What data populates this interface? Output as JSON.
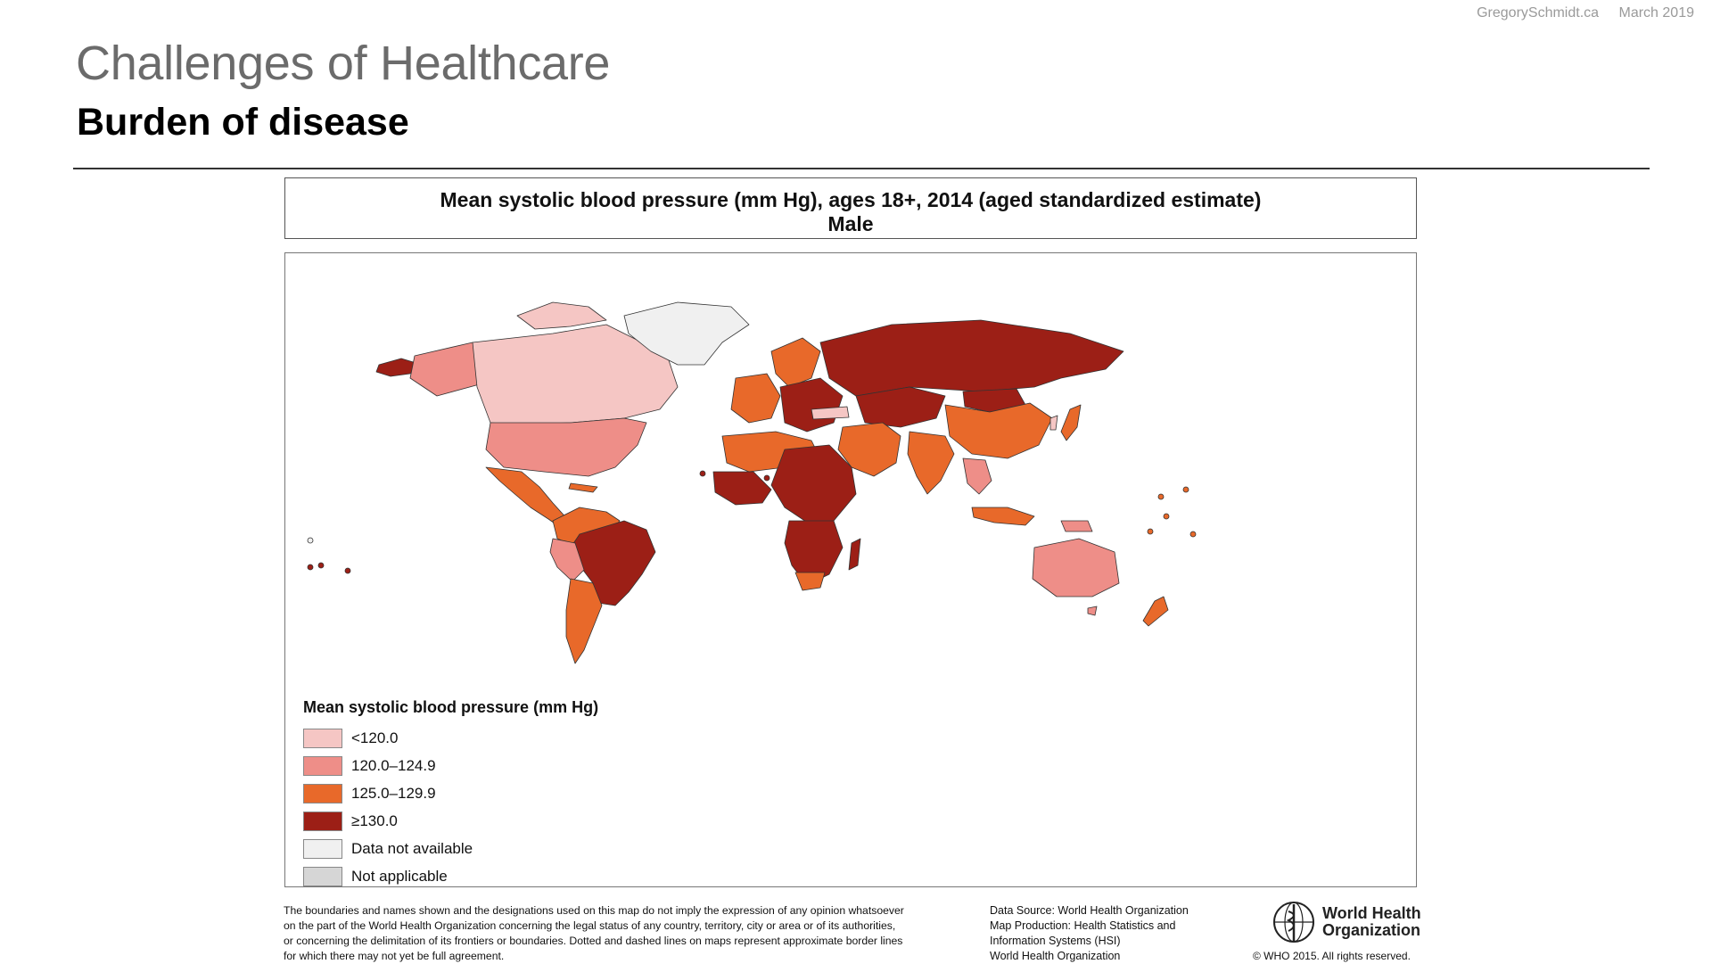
{
  "header": {
    "site": "GregorySchmidt.ca",
    "date": "March 2019",
    "title": "Challenges of Healthcare",
    "subtitle": "Burden of disease"
  },
  "map": {
    "title_line1": "Mean systolic blood pressure (mm Hg), ages 18+, 2014 (aged standardized estimate)",
    "title_line2": "Male",
    "colors": {
      "lt120": "#f5c6c4",
      "c120_124": "#ee8e88",
      "c125_129": "#e8692a",
      "ge130": "#9c1f16",
      "na": "#f0f0f0",
      "not_applicable": "#d6d6d6"
    },
    "legend": {
      "title": "Mean systolic blood pressure (mm Hg)",
      "items": [
        {
          "label": "<120.0",
          "color": "#f5c6c4"
        },
        {
          "label": "120.0–124.9",
          "color": "#ee8e88"
        },
        {
          "label": "125.0–129.9",
          "color": "#e8692a"
        },
        {
          "label": "≥130.0",
          "color": "#9c1f16"
        },
        {
          "label": "Data not available",
          "color": "#f0f0f0"
        },
        {
          "label": "Not applicable",
          "color": "#d6d6d6"
        }
      ]
    }
  },
  "footer": {
    "disclaimer_lines": [
      "The boundaries and names shown and the designations used on this map do not imply the expression of any opinion whatsoever",
      "on the part of the World Health Organization concerning the legal status of any country, territory, city or area or of its authorities,",
      "or concerning the delimitation of its frontiers or boundaries. Dotted and dashed lines on maps represent approximate border lines",
      "for which there may not yet be full agreement."
    ],
    "source_lines": [
      "Data Source: World Health Organization",
      "Map Production: Health Statistics and",
      "Information Systems (HSI)",
      "World Health Organization"
    ],
    "who_line1": "World Health",
    "who_line2": "Organization",
    "copyright": "© WHO 2015. All rights reserved."
  }
}
